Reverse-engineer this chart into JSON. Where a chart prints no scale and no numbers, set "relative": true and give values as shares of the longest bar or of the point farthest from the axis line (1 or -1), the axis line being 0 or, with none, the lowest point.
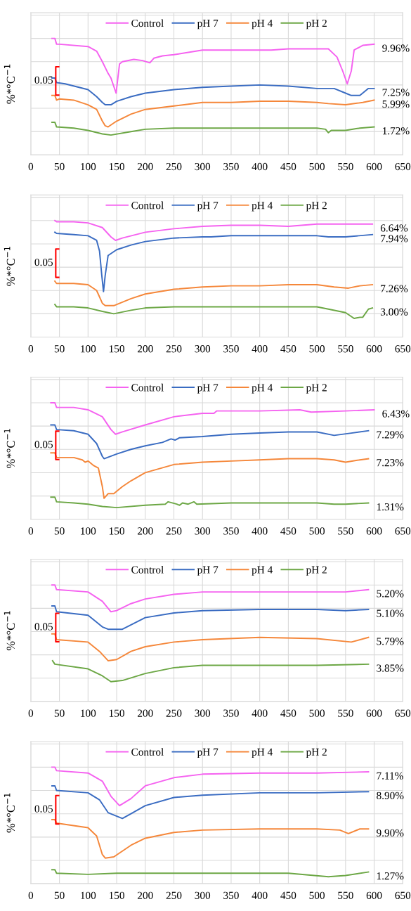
{
  "chart_data": [
    {
      "type": "line",
      "relative": true,
      "ylabel": "%*°C$^{−1}$",
      "xlim": [
        0,
        650
      ],
      "xticks": [
        0,
        50,
        100,
        150,
        200,
        250,
        300,
        350,
        400,
        450,
        500,
        550,
        600,
        650
      ],
      "grid": true,
      "legend": "top",
      "tick_labels": "x",
      "series": [
        {
          "name": "Control",
          "color": "#f562f0",
          "x": [
            37,
            42,
            45,
            50,
            100,
            115,
            125,
            135,
            140,
            149,
            155,
            160,
            180,
            195,
            208,
            215,
            230,
            250,
            300,
            350,
            400,
            420,
            450,
            500,
            520,
            535,
            545,
            553,
            560,
            565,
            580,
            600
          ],
          "values": [
            1.0,
            1.0,
            0.95,
            0.95,
            0.93,
            0.89,
            0.8,
            0.7,
            0.66,
            0.53,
            0.78,
            0.8,
            0.82,
            0.81,
            0.79,
            0.83,
            0.85,
            0.86,
            0.9,
            0.9,
            0.9,
            0.9,
            0.91,
            0.91,
            0.91,
            0.84,
            0.72,
            0.61,
            0.72,
            0.9,
            0.94,
            0.95
          ]
        },
        {
          "name": "pH 7",
          "color": "#3a6cc2",
          "x": [
            37,
            42,
            45,
            60,
            100,
            115,
            125,
            130,
            140,
            150,
            175,
            200,
            250,
            300,
            350,
            400,
            450,
            500,
            530,
            550,
            560,
            575,
            590,
            600
          ],
          "values": [
            0.66,
            0.66,
            0.62,
            0.61,
            0.56,
            0.5,
            0.45,
            0.43,
            0.43,
            0.46,
            0.5,
            0.53,
            0.56,
            0.58,
            0.59,
            0.6,
            0.59,
            0.57,
            0.57,
            0.53,
            0.51,
            0.51,
            0.57,
            0.57
          ]
        },
        {
          "name": "pH 4",
          "color": "#f5873a",
          "x": [
            37,
            42,
            45,
            50,
            75,
            100,
            115,
            125,
            130,
            135,
            150,
            175,
            200,
            250,
            300,
            350,
            400,
            450,
            500,
            520,
            550,
            580,
            600
          ],
          "values": [
            0.51,
            0.51,
            0.47,
            0.48,
            0.47,
            0.43,
            0.39,
            0.29,
            0.25,
            0.24,
            0.29,
            0.35,
            0.39,
            0.42,
            0.45,
            0.45,
            0.46,
            0.46,
            0.45,
            0.44,
            0.43,
            0.45,
            0.47
          ]
        },
        {
          "name": "pH 2",
          "color": "#6ca745",
          "x": [
            37,
            42,
            45,
            75,
            100,
            125,
            140,
            175,
            200,
            250,
            300,
            400,
            500,
            515,
            520,
            525,
            550,
            575,
            600
          ],
          "values": [
            0.28,
            0.28,
            0.24,
            0.23,
            0.21,
            0.18,
            0.17,
            0.2,
            0.22,
            0.23,
            0.23,
            0.23,
            0.23,
            0.22,
            0.19,
            0.21,
            0.21,
            0.23,
            0.24
          ]
        }
      ],
      "annotations": [
        "9.96%",
        "7.25%",
        "5.99%",
        "1.72%",
        "0.05"
      ]
    },
    {
      "type": "line",
      "relative": true,
      "ylabel": "%*°C$^{−1}$",
      "xlim": [
        0,
        650
      ],
      "xticks": [
        0,
        50,
        100,
        150,
        200,
        250,
        300,
        350,
        400,
        450,
        500,
        550,
        600,
        650
      ],
      "grid": true,
      "legend": "top",
      "tick_labels": "x",
      "series": [
        {
          "name": "Control",
          "color": "#f562f0",
          "x": [
            42,
            45,
            75,
            100,
            125,
            140,
            148,
            160,
            200,
            250,
            300,
            350,
            400,
            450,
            500,
            550,
            575,
            597
          ],
          "values": [
            1.0,
            0.99,
            0.99,
            0.98,
            0.94,
            0.86,
            0.83,
            0.85,
            0.9,
            0.93,
            0.95,
            0.96,
            0.96,
            0.95,
            0.97,
            0.97,
            0.97,
            0.97
          ]
        },
        {
          "name": "pH 7",
          "color": "#3a6cc2",
          "x": [
            42,
            45,
            75,
            100,
            115,
            120,
            124,
            127,
            130,
            135,
            150,
            175,
            200,
            250,
            300,
            315,
            350,
            400,
            450,
            500,
            520,
            550,
            597
          ],
          "values": [
            0.9,
            0.89,
            0.88,
            0.87,
            0.83,
            0.74,
            0.53,
            0.39,
            0.53,
            0.7,
            0.75,
            0.79,
            0.82,
            0.85,
            0.86,
            0.86,
            0.87,
            0.87,
            0.87,
            0.87,
            0.86,
            0.86,
            0.88
          ]
        },
        {
          "name": "pH 4",
          "color": "#f5873a",
          "x": [
            42,
            45,
            75,
            100,
            115,
            125,
            130,
            145,
            175,
            200,
            250,
            300,
            350,
            400,
            450,
            500,
            530,
            555,
            575,
            597
          ],
          "values": [
            0.48,
            0.46,
            0.46,
            0.45,
            0.4,
            0.29,
            0.27,
            0.27,
            0.33,
            0.37,
            0.41,
            0.43,
            0.44,
            0.44,
            0.45,
            0.45,
            0.43,
            0.42,
            0.44,
            0.45
          ]
        },
        {
          "name": "pH 2",
          "color": "#6ca745",
          "x": [
            42,
            45,
            75,
            100,
            125,
            145,
            175,
            200,
            250,
            300,
            400,
            500,
            520,
            550,
            565,
            575,
            580,
            590,
            597
          ],
          "values": [
            0.28,
            0.26,
            0.26,
            0.25,
            0.22,
            0.2,
            0.23,
            0.25,
            0.26,
            0.26,
            0.26,
            0.26,
            0.24,
            0.21,
            0.16,
            0.17,
            0.17,
            0.24,
            0.25
          ]
        }
      ],
      "annotations": [
        "6.64%",
        "7.94%",
        "7.26%",
        "3.00%",
        "0.05"
      ]
    },
    {
      "type": "line",
      "relative": true,
      "ylabel": "%*°C$^{−1}$",
      "xlim": [
        0,
        650
      ],
      "xticks": [
        0,
        50,
        100,
        150,
        200,
        250,
        300,
        350,
        400,
        450,
        500,
        550,
        600,
        650
      ],
      "grid": true,
      "legend": "top",
      "tick_labels": "x",
      "series": [
        {
          "name": "Control",
          "color": "#f562f0",
          "x": [
            35,
            42,
            45,
            75,
            100,
            125,
            140,
            148,
            160,
            200,
            250,
            300,
            320,
            325,
            350,
            400,
            470,
            490,
            550,
            600
          ],
          "values": [
            1.0,
            1.0,
            0.96,
            0.96,
            0.94,
            0.88,
            0.77,
            0.73,
            0.75,
            0.81,
            0.88,
            0.91,
            0.91,
            0.93,
            0.93,
            0.93,
            0.94,
            0.92,
            0.93,
            0.94
          ]
        },
        {
          "name": "pH 7",
          "color": "#3a6cc2",
          "x": [
            35,
            42,
            45,
            75,
            100,
            115,
            125,
            128,
            150,
            175,
            200,
            230,
            245,
            252,
            260,
            300,
            350,
            400,
            450,
            500,
            530,
            560,
            590
          ],
          "values": [
            0.81,
            0.81,
            0.77,
            0.76,
            0.73,
            0.65,
            0.54,
            0.52,
            0.56,
            0.6,
            0.63,
            0.66,
            0.69,
            0.68,
            0.7,
            0.71,
            0.73,
            0.74,
            0.75,
            0.75,
            0.72,
            0.74,
            0.76
          ]
        },
        {
          "name": "pH 4",
          "color": "#f5873a",
          "x": [
            35,
            42,
            45,
            75,
            90,
            95,
            100,
            110,
            118,
            125,
            128,
            135,
            145,
            160,
            175,
            200,
            250,
            300,
            350,
            400,
            450,
            500,
            530,
            550,
            575,
            590
          ],
          "values": [
            0.57,
            0.57,
            0.53,
            0.53,
            0.51,
            0.49,
            0.5,
            0.46,
            0.44,
            0.28,
            0.18,
            0.22,
            0.22,
            0.28,
            0.33,
            0.4,
            0.47,
            0.49,
            0.5,
            0.51,
            0.52,
            0.52,
            0.51,
            0.49,
            0.51,
            0.52
          ]
        },
        {
          "name": "pH 2",
          "color": "#6ca745",
          "x": [
            35,
            42,
            45,
            75,
            100,
            125,
            150,
            200,
            235,
            240,
            255,
            260,
            265,
            275,
            285,
            290,
            350,
            450,
            500,
            530,
            550,
            590
          ],
          "values": [
            0.19,
            0.19,
            0.15,
            0.14,
            0.13,
            0.11,
            0.1,
            0.12,
            0.13,
            0.15,
            0.13,
            0.12,
            0.14,
            0.13,
            0.15,
            0.13,
            0.14,
            0.14,
            0.14,
            0.13,
            0.13,
            0.14
          ]
        }
      ],
      "annotations": [
        "6.43%",
        "7.29%",
        "7.23%",
        "1.31%",
        "0.05"
      ]
    },
    {
      "type": "line",
      "relative": true,
      "ylabel": "%*°C$^{−1}$",
      "xlim": [
        0,
        650
      ],
      "xticks": [
        0,
        50,
        100,
        150,
        200,
        250,
        300,
        350,
        400,
        450,
        500,
        550,
        600,
        650
      ],
      "grid": true,
      "legend": "top",
      "tick_labels": "x",
      "series": [
        {
          "name": "Control",
          "color": "#f562f0",
          "x": [
            37,
            42,
            45,
            100,
            125,
            140,
            150,
            175,
            200,
            250,
            300,
            400,
            500,
            550,
            590
          ],
          "values": [
            1.0,
            1.0,
            0.96,
            0.94,
            0.86,
            0.77,
            0.78,
            0.84,
            0.88,
            0.92,
            0.94,
            0.94,
            0.94,
            0.94,
            0.96
          ]
        },
        {
          "name": "pH 7",
          "color": "#3a6cc2",
          "x": [
            37,
            42,
            45,
            100,
            125,
            135,
            160,
            200,
            250,
            300,
            400,
            500,
            550,
            590
          ],
          "values": [
            0.82,
            0.82,
            0.77,
            0.74,
            0.64,
            0.62,
            0.62,
            0.72,
            0.76,
            0.78,
            0.79,
            0.79,
            0.78,
            0.79
          ]
        },
        {
          "name": "pH 4",
          "color": "#f5873a",
          "x": [
            37,
            42,
            45,
            100,
            120,
            135,
            150,
            175,
            200,
            250,
            300,
            400,
            500,
            560,
            590
          ],
          "values": [
            0.58,
            0.58,
            0.53,
            0.51,
            0.43,
            0.35,
            0.36,
            0.43,
            0.47,
            0.51,
            0.53,
            0.55,
            0.54,
            0.51,
            0.55
          ]
        },
        {
          "name": "pH 2",
          "color": "#6ca745",
          "x": [
            38,
            42,
            100,
            125,
            140,
            160,
            200,
            250,
            300,
            400,
            500,
            590
          ],
          "values": [
            0.35,
            0.32,
            0.28,
            0.22,
            0.17,
            0.18,
            0.24,
            0.29,
            0.31,
            0.31,
            0.31,
            0.32
          ]
        }
      ],
      "annotations": [
        "5.20%",
        "5.10%",
        "5.79%",
        "3.85%",
        "0.05"
      ]
    },
    {
      "type": "line",
      "relative": true,
      "ylabel": "%*°C$^{−1}$",
      "xlim": [
        0,
        650
      ],
      "xticks": [
        0,
        50,
        100,
        150,
        200,
        250,
        300,
        350,
        400,
        450,
        500,
        550,
        600,
        650
      ],
      "grid": true,
      "legend": "top",
      "tick_labels": "x",
      "series": [
        {
          "name": "Control",
          "color": "#f562f0",
          "x": [
            37,
            42,
            45,
            100,
            125,
            140,
            155,
            175,
            200,
            250,
            300,
            400,
            500,
            590
          ],
          "values": [
            1.0,
            1.0,
            0.97,
            0.95,
            0.88,
            0.75,
            0.67,
            0.73,
            0.84,
            0.91,
            0.94,
            0.95,
            0.95,
            0.96
          ]
        },
        {
          "name": "pH 7",
          "color": "#3a6cc2",
          "x": [
            37,
            42,
            45,
            100,
            120,
            135,
            160,
            175,
            200,
            250,
            300,
            400,
            500,
            590
          ],
          "values": [
            0.84,
            0.84,
            0.8,
            0.78,
            0.72,
            0.61,
            0.56,
            0.6,
            0.67,
            0.74,
            0.76,
            0.78,
            0.78,
            0.79
          ]
        },
        {
          "name": "pH 4",
          "color": "#f5873a",
          "x": [
            37,
            42,
            45,
            100,
            115,
            125,
            130,
            145,
            175,
            200,
            250,
            300,
            400,
            500,
            540,
            555,
            575,
            590
          ],
          "values": [
            0.55,
            0.55,
            0.52,
            0.48,
            0.41,
            0.25,
            0.22,
            0.23,
            0.33,
            0.39,
            0.44,
            0.46,
            0.47,
            0.47,
            0.46,
            0.43,
            0.47,
            0.47
          ]
        },
        {
          "name": "pH 2",
          "color": "#6ca745",
          "x": [
            37,
            42,
            45,
            100,
            150,
            250,
            350,
            450,
            520,
            550,
            590
          ],
          "values": [
            0.12,
            0.12,
            0.09,
            0.08,
            0.09,
            0.09,
            0.09,
            0.09,
            0.06,
            0.07,
            0.1
          ]
        }
      ],
      "annotations": [
        "7.11%",
        "8.90%",
        "9.90%",
        "1.27%",
        "0.05"
      ]
    }
  ]
}
